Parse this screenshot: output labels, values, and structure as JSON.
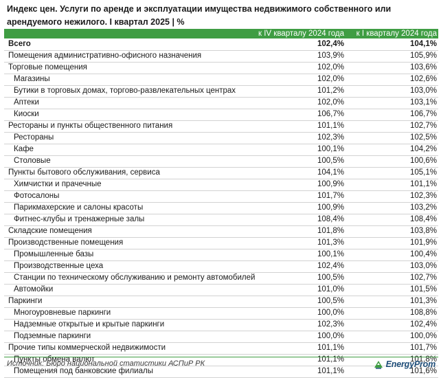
{
  "title": "Индекс цен. Услуги по аренде и эксплуатации имущества недвижимого собственного или арендуемого нежилого. I квартал 2025 | %",
  "columns": [
    "к IV кварталу 2024 года",
    "к I кварталу 2024 года"
  ],
  "rows": [
    {
      "label": "Всего",
      "v1": "102,4%",
      "v2": "104,1%",
      "level": 0,
      "bold": true
    },
    {
      "label": "Помещения административно-офисного назначения",
      "v1": "103,9%",
      "v2": "105,9%",
      "level": 0
    },
    {
      "label": "Торговые помещения",
      "v1": "102,0%",
      "v2": "103,6%",
      "level": 0
    },
    {
      "label": "Магазины",
      "v1": "102,0%",
      "v2": "102,6%",
      "level": 1
    },
    {
      "label": "Бутики в торговых домах, торгово-развлекательных центрах",
      "v1": "101,2%",
      "v2": "103,0%",
      "level": 1
    },
    {
      "label": "Аптеки",
      "v1": "102,0%",
      "v2": "103,1%",
      "level": 1
    },
    {
      "label": "Киоски",
      "v1": "106,7%",
      "v2": "106,7%",
      "level": 1
    },
    {
      "label": "Рестораны и пункты общественного питания",
      "v1": "101,1%",
      "v2": "102,7%",
      "level": 0
    },
    {
      "label": "Рестораны",
      "v1": "102,3%",
      "v2": "102,5%",
      "level": 1
    },
    {
      "label": "Кафе",
      "v1": "100,1%",
      "v2": "104,2%",
      "level": 1
    },
    {
      "label": "Столовые",
      "v1": "100,5%",
      "v2": "100,6%",
      "level": 1
    },
    {
      "label": "Пункты бытового обслуживания, сервиса",
      "v1": "104,1%",
      "v2": "105,1%",
      "level": 0
    },
    {
      "label": "Химчистки и прачечные",
      "v1": "100,9%",
      "v2": "101,1%",
      "level": 1
    },
    {
      "label": "Фотосалоны",
      "v1": "101,7%",
      "v2": "102,3%",
      "level": 1
    },
    {
      "label": "Парикмахерские и салоны красоты",
      "v1": "100,9%",
      "v2": "103,2%",
      "level": 1
    },
    {
      "label": "Фитнес-клубы и тренажерные залы",
      "v1": "108,4%",
      "v2": "108,4%",
      "level": 1
    },
    {
      "label": "Складские помещения",
      "v1": "101,8%",
      "v2": "103,8%",
      "level": 0
    },
    {
      "label": "Производственные помещения",
      "v1": "101,3%",
      "v2": "101,9%",
      "level": 0
    },
    {
      "label": "Промышленные базы",
      "v1": "100,1%",
      "v2": "100,4%",
      "level": 1
    },
    {
      "label": "Производственные цеха",
      "v1": "102,4%",
      "v2": "103,0%",
      "level": 1
    },
    {
      "label": "Станции по техническому обслуживанию и ремонту автомобилей",
      "v1": "100,5%",
      "v2": "102,7%",
      "level": 1
    },
    {
      "label": "Автомойки",
      "v1": "101,0%",
      "v2": "101,5%",
      "level": 1
    },
    {
      "label": "Паркинги",
      "v1": "100,5%",
      "v2": "101,3%",
      "level": 0
    },
    {
      "label": "Многоуровневые паркинги",
      "v1": "100,0%",
      "v2": "108,8%",
      "level": 1
    },
    {
      "label": "Надземные открытые и крытые паркинги",
      "v1": "102,3%",
      "v2": "102,4%",
      "level": 1
    },
    {
      "label": "Подземные паркинги",
      "v1": "100,0%",
      "v2": "100,0%",
      "level": 1
    },
    {
      "label": "Прочие типы коммерческой недвижимости",
      "v1": "101,1%",
      "v2": "101,7%",
      "level": 0
    },
    {
      "label": "Пункты обмена валют",
      "v1": "101,1%",
      "v2": "101,8%",
      "level": 1
    },
    {
      "label": "Помещения под банковские филиалы",
      "v1": "101,1%",
      "v2": "101,6%",
      "level": 1
    }
  ],
  "source": "Источник: Бюро национальной статистики АСПиР РК",
  "logo": {
    "text": "EnergyProm",
    "icon": "energyprom-logo-icon",
    "color": "#1f4e79"
  },
  "colors": {
    "accent": "#3f9d43",
    "divider": "#d2d2d2"
  }
}
